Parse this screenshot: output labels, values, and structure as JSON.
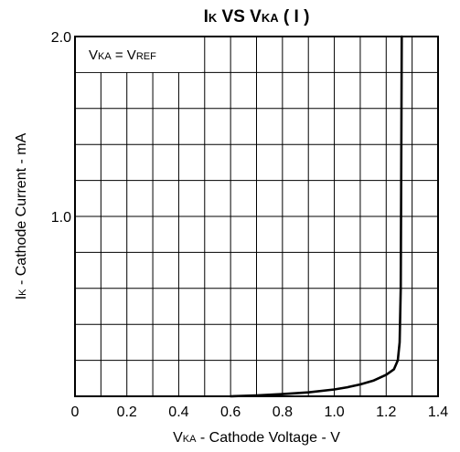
{
  "chart_data": {
    "type": "line",
    "title": {
      "parts": [
        {
          "text": "I",
          "sub": false
        },
        {
          "text": "K",
          "sub": true
        },
        {
          "text": " VS V",
          "sub": false
        },
        {
          "text": "KA",
          "sub": true
        },
        {
          "text": " ( I )",
          "sub": false
        }
      ]
    },
    "xlabel": {
      "parts": [
        {
          "text": "V",
          "sub": false
        },
        {
          "text": "KA",
          "sub": true
        },
        {
          "text": " - Cathode Voltage - V",
          "sub": false
        }
      ]
    },
    "ylabel": {
      "parts": [
        {
          "text": "I",
          "sub": false
        },
        {
          "text": "K",
          "sub": true
        },
        {
          "text": " - Cathode Current - mA",
          "sub": false
        }
      ]
    },
    "annotation": {
      "parts": [
        {
          "text": "V",
          "sub": false
        },
        {
          "text": "KA",
          "sub": true
        },
        {
          "text": " = V",
          "sub": false
        },
        {
          "text": "REF",
          "sub": true
        }
      ],
      "placement": "top-left"
    },
    "xlim": [
      0,
      1.4
    ],
    "ylim": [
      0,
      2.0
    ],
    "x_ticks": [
      {
        "value": 0,
        "label": "0"
      },
      {
        "value": 0.2,
        "label": "0.2"
      },
      {
        "value": 0.4,
        "label": "0.4"
      },
      {
        "value": 0.6,
        "label": "0.6"
      },
      {
        "value": 0.8,
        "label": "0.8"
      },
      {
        "value": 1.0,
        "label": "1.0"
      },
      {
        "value": 1.2,
        "label": "1.2"
      },
      {
        "value": 1.4,
        "label": "1.4"
      }
    ],
    "y_ticks": [
      {
        "value": 0,
        "label": "0"
      },
      {
        "value": 1.0,
        "label": "1.0"
      },
      {
        "value": 2.0,
        "label": "2.0"
      }
    ],
    "x_gridlines": [
      0.1,
      0.2,
      0.3,
      0.4,
      0.5,
      0.6,
      0.7,
      0.8,
      0.9,
      1.0,
      1.1,
      1.2,
      1.3
    ],
    "y_gridlines": [
      0.2,
      0.4,
      0.6,
      0.8,
      1.0,
      1.2,
      1.4,
      1.6,
      1.8
    ],
    "grid": true,
    "series": [
      {
        "color": "#000000",
        "x": [
          0.6,
          0.7,
          0.8,
          0.9,
          1.0,
          1.05,
          1.1,
          1.15,
          1.2,
          1.23,
          1.245,
          1.252,
          1.256,
          1.258,
          1.26
        ],
        "y": [
          0.0,
          0.005,
          0.012,
          0.022,
          0.038,
          0.05,
          0.066,
          0.087,
          0.12,
          0.15,
          0.2,
          0.3,
          0.6,
          1.2,
          2.0
        ]
      }
    ]
  }
}
